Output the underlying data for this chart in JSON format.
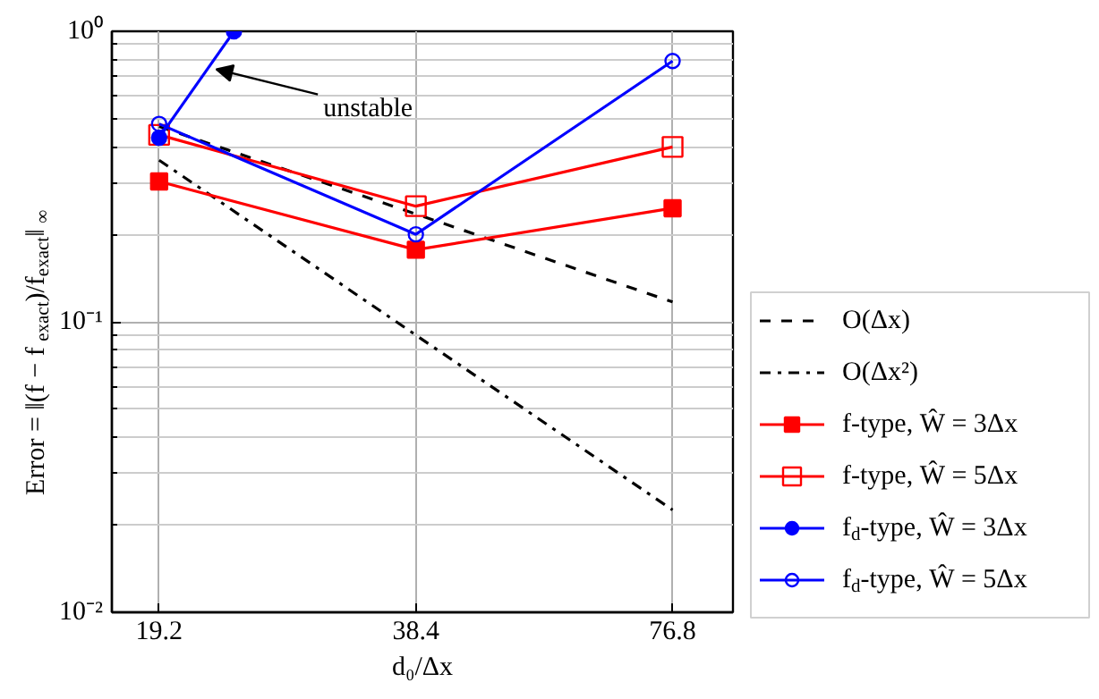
{
  "chart_data": {
    "type": "line",
    "xlabel": "d₀/Δx",
    "ylabel": "Error = ‖(f − f$_{exact}$)/f$_{exact}$‖$_{∞}$",
    "log": "xy",
    "grid": true,
    "legend": "right",
    "xlim": [
      16.9,
      90.4
    ],
    "xticks": [
      19.2,
      38.4,
      76.8
    ],
    "ylim": [
      0.01,
      1
    ],
    "yticks": [
      {
        "value": 0.01,
        "label": "10⁻²"
      },
      {
        "value": 0.02,
        "label": null
      },
      {
        "value": 0.03,
        "label": null
      },
      {
        "value": 0.04,
        "label": null
      },
      {
        "value": 0.05,
        "label": null
      },
      {
        "value": 0.06,
        "label": null
      },
      {
        "value": 0.07,
        "label": null
      },
      {
        "value": 0.08,
        "label": null
      },
      {
        "value": 0.09,
        "label": null
      },
      {
        "value": 0.1,
        "label": "10⁻¹"
      },
      {
        "value": 0.2,
        "label": null
      },
      {
        "value": 0.3,
        "label": null
      },
      {
        "value": 0.4,
        "label": null
      },
      {
        "value": 0.5,
        "label": null
      },
      {
        "value": 0.6,
        "label": null
      },
      {
        "value": 0.7,
        "label": null
      },
      {
        "value": 0.8,
        "label": null
      },
      {
        "value": 0.9,
        "label": null
      },
      {
        "value": 1,
        "label": "10⁰"
      }
    ],
    "x": [
      19.2,
      38.4,
      76.8
    ],
    "series": [
      {
        "name": "O(Δx)",
        "color": "#000000",
        "values": [
          0.47,
          0.235,
          0.117
        ],
        "line_style": "dashed",
        "marker": "none"
      },
      {
        "name": "O(Δx²)",
        "color": "#000000",
        "values": [
          0.36,
          0.09,
          0.0225
        ],
        "line_style": "dashdot",
        "marker": "none"
      },
      {
        "name": "f-type, Ŵ = 3Δx",
        "color": "#ff0000",
        "values": [
          0.304,
          0.177,
          0.246
        ],
        "line_style": "solid",
        "marker": "square"
      },
      {
        "name": "f-type, Ŵ = 5Δx",
        "color": "#ff0000",
        "values": [
          0.44,
          0.25,
          0.4
        ],
        "line_style": "solid",
        "marker": "square_open"
      },
      {
        "name": "f$_{d}$-type, Ŵ = 3Δx",
        "color": "#0000ff",
        "x": [
          19.2,
          23.5
        ],
        "values": [
          0.43,
          1
        ],
        "line_style": "solid",
        "marker": "circle"
      },
      {
        "name": "f$_{d}$-type, Ŵ = 5Δx",
        "color": "#0000ff",
        "values": [
          0.48,
          0.2,
          0.79
        ],
        "line_style": "solid",
        "marker": "circle_open"
      }
    ],
    "annotations": [
      {
        "text": "unstable",
        "x": 22.4,
        "y": 0.74
      }
    ]
  }
}
